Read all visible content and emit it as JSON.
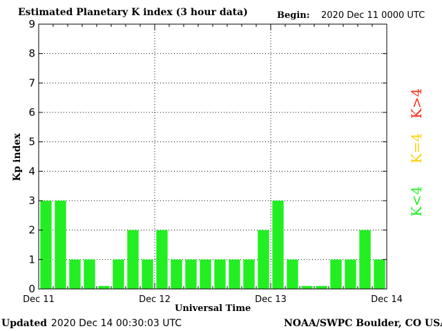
{
  "header": {
    "title": "Estimated Planetary K index (3 hour data)",
    "begin_label": "Begin:",
    "begin_value": "2020 Dec 11 0000 UTC"
  },
  "footer": {
    "updated_label": "Updated",
    "updated_value": "2020 Dec 14 00:30:03 UTC",
    "credit": "NOAA/SWPC Boulder, CO USA"
  },
  "legend": {
    "high": {
      "label": "K>4",
      "color": "#ff2b1a"
    },
    "mid": {
      "label": "K=4",
      "color": "#ffd000"
    },
    "low": {
      "label": "K<4",
      "color": "#22ee22"
    }
  },
  "chart_data": {
    "type": "bar",
    "title": "Estimated Planetary K index (3 hour data)",
    "xlabel": "Universal Time",
    "ylabel": "Kp index",
    "ylim": [
      0,
      9
    ],
    "yticks": [
      "0",
      "1",
      "2",
      "3",
      "4",
      "5",
      "6",
      "7",
      "8",
      "9"
    ],
    "xtick_labels": [
      "Dec 11",
      "Dec 12",
      "Dec 13",
      "Dec 14"
    ],
    "grid": true,
    "bar_color": "#22ee22",
    "values": [
      3,
      3,
      1,
      1,
      0.1,
      1,
      2,
      1,
      2,
      1,
      1,
      1,
      1,
      1,
      1,
      2,
      3,
      1,
      0.1,
      0.1,
      1,
      1,
      2,
      1
    ]
  }
}
